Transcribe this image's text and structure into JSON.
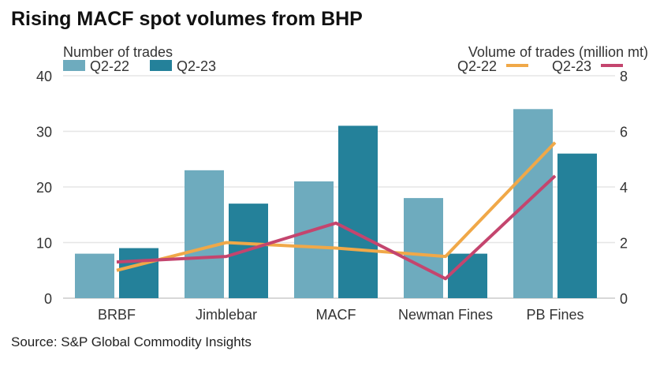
{
  "title": "Rising MACF spot volumes from BHP",
  "source": "Source: S&P Global Commodity Insights",
  "chart_data": {
    "type": "bar+line",
    "categories": [
      "BRBF",
      "Jimblebar",
      "MACF",
      "Newman Fines",
      "PB Fines"
    ],
    "left_axis": {
      "label": "Number of trades",
      "range": [
        0,
        40
      ],
      "ticks": [
        0,
        10,
        20,
        30,
        40
      ]
    },
    "right_axis": {
      "label": "Volume of trades (million mt)",
      "range": [
        0,
        8
      ],
      "ticks": [
        0,
        2,
        4,
        6,
        8
      ]
    },
    "bar_series": [
      {
        "name": "Q2-22",
        "color": "#6eabbe",
        "values": [
          8,
          23,
          21,
          18,
          34
        ]
      },
      {
        "name": "Q2-23",
        "color": "#24819a",
        "values": [
          9,
          17,
          31,
          8,
          26
        ]
      }
    ],
    "line_series": [
      {
        "name": "Q2-22",
        "color": "#f0a848",
        "values": [
          1.0,
          2.0,
          1.8,
          1.5,
          5.6
        ]
      },
      {
        "name": "Q2-23",
        "color": "#c4456e",
        "values": [
          1.3,
          1.5,
          2.7,
          0.7,
          4.4
        ]
      }
    ],
    "grid": true
  }
}
